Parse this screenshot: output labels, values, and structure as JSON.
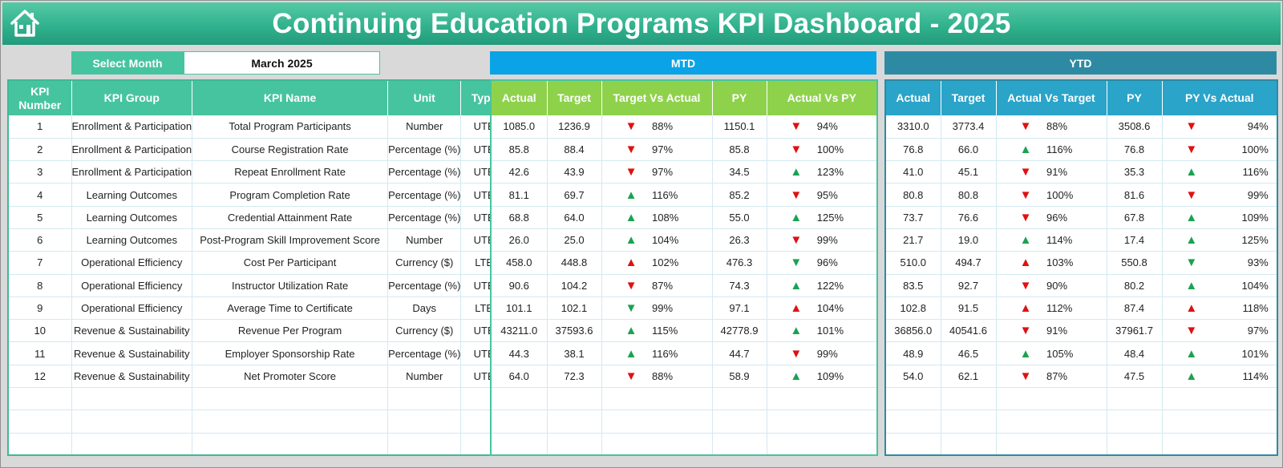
{
  "title": "Continuing Education Programs KPI Dashboard - 2025",
  "select_month": {
    "label": "Select Month",
    "value": "March 2025"
  },
  "sections": {
    "mtd": "MTD",
    "ytd": "YTD"
  },
  "colors": {
    "header": "#2fb08c",
    "mtd": "#0aa3e6",
    "ytd": "#2e8aa3",
    "up": "#1aa251",
    "down": "#e01010"
  },
  "kpi_headers": [
    "KPI\nNumber",
    "KPI Group",
    "KPI Name",
    "Unit",
    "Type"
  ],
  "mtd_headers": [
    "Actual",
    "Target",
    "Target Vs Actual",
    "PY",
    "Actual Vs PY"
  ],
  "ytd_headers": [
    "Actual",
    "Target",
    "Actual Vs Target",
    "PY",
    "PY Vs Actual"
  ],
  "rows": [
    {
      "num": "1",
      "group": "Enrollment & Participation",
      "name": "Total Program Participants",
      "unit": "Number",
      "type": "UTB",
      "mtd": {
        "actual": "1085.0",
        "target": "1236.9",
        "tva_icon": "down",
        "tva": "88%",
        "py": "1150.1",
        "avp_icon": "down",
        "avp": "94%"
      },
      "ytd": {
        "actual": "3310.0",
        "target": "3773.4",
        "avt_icon": "down",
        "avt": "88%",
        "py": "3508.6",
        "pva_icon": "down",
        "pva": "94%"
      }
    },
    {
      "num": "2",
      "group": "Enrollment & Participation",
      "name": "Course Registration Rate",
      "unit": "Percentage (%)",
      "type": "UTB",
      "mtd": {
        "actual": "85.8",
        "target": "88.4",
        "tva_icon": "down",
        "tva": "97%",
        "py": "85.8",
        "avp_icon": "down",
        "avp": "100%"
      },
      "ytd": {
        "actual": "76.8",
        "target": "66.0",
        "avt_icon": "up",
        "avt": "116%",
        "py": "76.8",
        "pva_icon": "down",
        "pva": "100%"
      }
    },
    {
      "num": "3",
      "group": "Enrollment & Participation",
      "name": "Repeat Enrollment Rate",
      "unit": "Percentage (%)",
      "type": "UTB",
      "mtd": {
        "actual": "42.6",
        "target": "43.9",
        "tva_icon": "down",
        "tva": "97%",
        "py": "34.5",
        "avp_icon": "up",
        "avp": "123%"
      },
      "ytd": {
        "actual": "41.0",
        "target": "45.1",
        "avt_icon": "down",
        "avt": "91%",
        "py": "35.3",
        "pva_icon": "up",
        "pva": "116%"
      }
    },
    {
      "num": "4",
      "group": "Learning Outcomes",
      "name": "Program Completion Rate",
      "unit": "Percentage (%)",
      "type": "UTB",
      "mtd": {
        "actual": "81.1",
        "target": "69.7",
        "tva_icon": "up",
        "tva": "116%",
        "py": "85.2",
        "avp_icon": "down",
        "avp": "95%"
      },
      "ytd": {
        "actual": "80.8",
        "target": "80.8",
        "avt_icon": "down",
        "avt": "100%",
        "py": "81.6",
        "pva_icon": "down",
        "pva": "99%"
      }
    },
    {
      "num": "5",
      "group": "Learning Outcomes",
      "name": "Credential Attainment Rate",
      "unit": "Percentage (%)",
      "type": "UTB",
      "mtd": {
        "actual": "68.8",
        "target": "64.0",
        "tva_icon": "up",
        "tva": "108%",
        "py": "55.0",
        "avp_icon": "up",
        "avp": "125%"
      },
      "ytd": {
        "actual": "73.7",
        "target": "76.6",
        "avt_icon": "down",
        "avt": "96%",
        "py": "67.8",
        "pva_icon": "up",
        "pva": "109%"
      }
    },
    {
      "num": "6",
      "group": "Learning Outcomes",
      "name": "Post-Program Skill Improvement Score",
      "unit": "Number",
      "type": "UTB",
      "mtd": {
        "actual": "26.0",
        "target": "25.0",
        "tva_icon": "up",
        "tva": "104%",
        "py": "26.3",
        "avp_icon": "down",
        "avp": "99%"
      },
      "ytd": {
        "actual": "21.7",
        "target": "19.0",
        "avt_icon": "up",
        "avt": "114%",
        "py": "17.4",
        "pva_icon": "up",
        "pva": "125%"
      }
    },
    {
      "num": "7",
      "group": "Operational Efficiency",
      "name": "Cost Per Participant",
      "unit": "Currency ($)",
      "type": "LTB",
      "mtd": {
        "actual": "458.0",
        "target": "448.8",
        "tva_icon": "up-red",
        "tva": "102%",
        "py": "476.3",
        "avp_icon": "down-green",
        "avp": "96%"
      },
      "ytd": {
        "actual": "510.0",
        "target": "494.7",
        "avt_icon": "up-red",
        "avt": "103%",
        "py": "550.8",
        "pva_icon": "down-green",
        "pva": "93%"
      }
    },
    {
      "num": "8",
      "group": "Operational Efficiency",
      "name": "Instructor Utilization Rate",
      "unit": "Percentage (%)",
      "type": "UTB",
      "mtd": {
        "actual": "90.6",
        "target": "104.2",
        "tva_icon": "down",
        "tva": "87%",
        "py": "74.3",
        "avp_icon": "up",
        "avp": "122%"
      },
      "ytd": {
        "actual": "83.5",
        "target": "92.7",
        "avt_icon": "down",
        "avt": "90%",
        "py": "80.2",
        "pva_icon": "up",
        "pva": "104%"
      }
    },
    {
      "num": "9",
      "group": "Operational Efficiency",
      "name": "Average Time to Certificate",
      "unit": "Days",
      "type": "LTB",
      "mtd": {
        "actual": "101.1",
        "target": "102.1",
        "tva_icon": "down-green",
        "tva": "99%",
        "py": "97.1",
        "avp_icon": "up-red",
        "avp": "104%"
      },
      "ytd": {
        "actual": "102.8",
        "target": "91.5",
        "avt_icon": "up-red",
        "avt": "112%",
        "py": "87.4",
        "pva_icon": "up-red",
        "pva": "118%"
      }
    },
    {
      "num": "10",
      "group": "Revenue & Sustainability",
      "name": "Revenue Per Program",
      "unit": "Currency ($)",
      "type": "UTB",
      "mtd": {
        "actual": "43211.0",
        "target": "37593.6",
        "tva_icon": "up",
        "tva": "115%",
        "py": "42778.9",
        "avp_icon": "up",
        "avp": "101%"
      },
      "ytd": {
        "actual": "36856.0",
        "target": "40541.6",
        "avt_icon": "down",
        "avt": "91%",
        "py": "37961.7",
        "pva_icon": "down",
        "pva": "97%"
      }
    },
    {
      "num": "11",
      "group": "Revenue & Sustainability",
      "name": "Employer Sponsorship Rate",
      "unit": "Percentage (%)",
      "type": "UTB",
      "mtd": {
        "actual": "44.3",
        "target": "38.1",
        "tva_icon": "up",
        "tva": "116%",
        "py": "44.7",
        "avp_icon": "down",
        "avp": "99%"
      },
      "ytd": {
        "actual": "48.9",
        "target": "46.5",
        "avt_icon": "up",
        "avt": "105%",
        "py": "48.4",
        "pva_icon": "up",
        "pva": "101%"
      }
    },
    {
      "num": "12",
      "group": "Revenue & Sustainability",
      "name": "Net Promoter Score",
      "unit": "Number",
      "type": "UTB",
      "mtd": {
        "actual": "64.0",
        "target": "72.3",
        "tva_icon": "down",
        "tva": "88%",
        "py": "58.9",
        "avp_icon": "up",
        "avp": "109%"
      },
      "ytd": {
        "actual": "54.0",
        "target": "62.1",
        "avt_icon": "down",
        "avt": "87%",
        "py": "47.5",
        "pva_icon": "up",
        "pva": "114%"
      }
    }
  ]
}
